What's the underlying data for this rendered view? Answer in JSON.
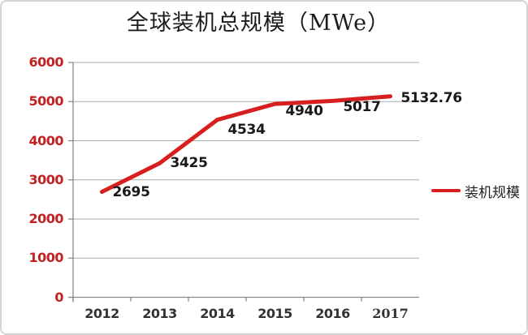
{
  "title": "全球装机总规模（MWe）",
  "legend": {
    "label": "装机规模"
  },
  "chart_data": {
    "type": "line",
    "title": "全球装机总规模（MWe）",
    "categories": [
      "2012",
      "2013",
      "2014",
      "2015",
      "2016",
      "2017"
    ],
    "series": [
      {
        "name": "装机规模",
        "color": "#d71f1f",
        "values": [
          2695,
          3425,
          4534,
          4940,
          5017,
          5132.76
        ]
      }
    ],
    "data_labels": [
      "2695",
      "3425",
      "4534",
      "4940",
      "5017",
      "5132.76"
    ],
    "xlabel": "",
    "ylabel": "",
    "ylim": [
      0,
      6000
    ],
    "yticks": [
      0,
      1000,
      2000,
      3000,
      4000,
      5000,
      6000
    ],
    "grid": true,
    "legend_position": "right",
    "colors": {
      "line": "#d71f1f",
      "ytick_label": "#c32222",
      "xtick_label": "#333333",
      "data_label": "#191919",
      "gridline": "#ababab",
      "axis": "#8a8a8a"
    },
    "layout_hints": {
      "label_dx": 13,
      "label_dy": [
        1,
        0,
        12,
        9,
        8,
        2
      ],
      "x_label_serif_indices": [
        5
      ]
    }
  }
}
